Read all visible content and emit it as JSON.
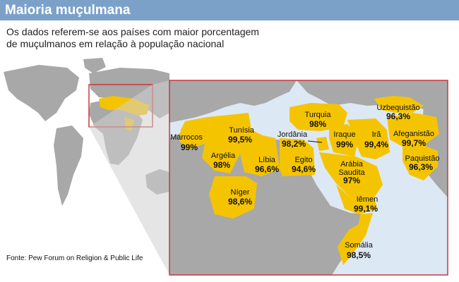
{
  "title": "Maioria muçulmana",
  "subtitle": "Os dados referem-se aos países com maior porcentagem de muçulmanos em relação à população nacional",
  "source": "Fonte: Pew Forum on Religion & Public Life",
  "colors": {
    "header": "#7ca1c9",
    "highlight": "#f5c400",
    "land": "#a8a8a8",
    "water": "#dce8f4",
    "frame": "#c8373c"
  },
  "countries": [
    {
      "name": "Marrocos",
      "value": "99%"
    },
    {
      "name": "Tunísia",
      "value": "99,5%"
    },
    {
      "name": "Argélia",
      "value": "98%"
    },
    {
      "name": "Líbia",
      "value": "96,6%"
    },
    {
      "name": "Egito",
      "value": "94,6%"
    },
    {
      "name": "Níger",
      "value": "98,6%"
    },
    {
      "name": "Jordânia",
      "value": "98,2%"
    },
    {
      "name": "Turquia",
      "value": "98%"
    },
    {
      "name": "Iraque",
      "value": "99%"
    },
    {
      "name": "Irã",
      "value": "99,4%"
    },
    {
      "name": "Afeganistão",
      "value": "99,7%"
    },
    {
      "name": "Uzbequistão",
      "value": "96,3%"
    },
    {
      "name": "Paquistão",
      "value": "96,3%"
    },
    {
      "name": "Arábia Saudita",
      "value": "97%"
    },
    {
      "name": "Iêmen",
      "value": "99,1%"
    },
    {
      "name": "Somália",
      "value": "98,5%"
    }
  ]
}
